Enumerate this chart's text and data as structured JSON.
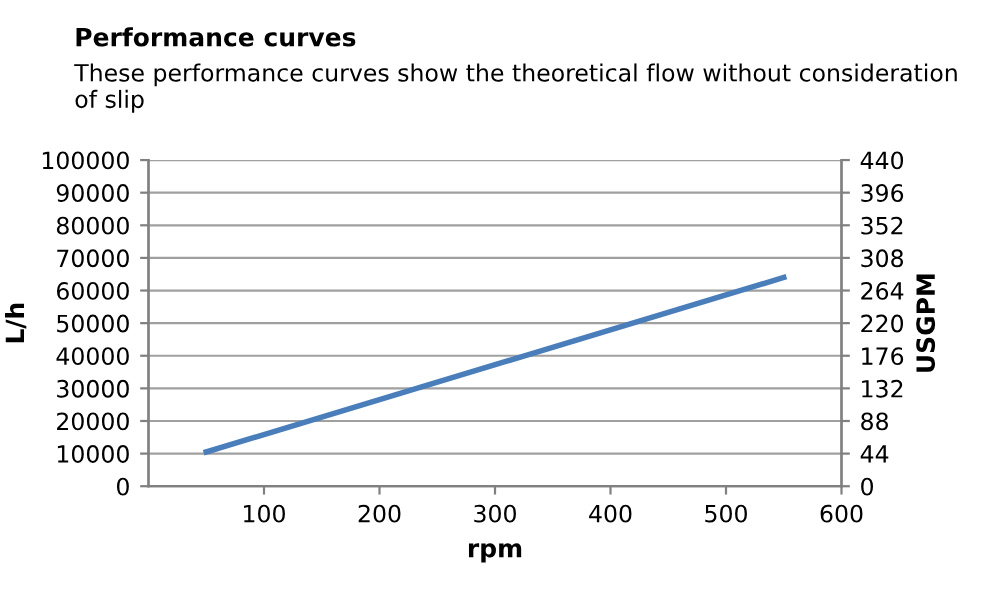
{
  "chart_data": {
    "type": "line",
    "title": "Performance curves",
    "subtitle": "These performance curves show the theoretical flow without consideration of slip",
    "xlabel": "rpm",
    "ylabel": "L/h",
    "y2label": "USGPM",
    "series": [
      {
        "color": "#4a7ebb",
        "x": [
          50,
          550
        ],
        "values": [
          10500,
          64000
        ]
      }
    ],
    "xlim": [
      0,
      600
    ],
    "xticks": [
      100,
      200,
      300,
      400,
      500,
      600
    ],
    "ylim": [
      0,
      100000
    ],
    "yticks": [
      0,
      10000,
      20000,
      30000,
      40000,
      50000,
      60000,
      70000,
      80000,
      90000,
      100000
    ],
    "y2lim": [
      0,
      440
    ],
    "y2ticks": [
      0,
      44,
      88,
      132,
      176,
      220,
      264,
      308,
      352,
      396,
      440
    ],
    "grid": "y",
    "marker": "none",
    "line_style": "solid"
  }
}
